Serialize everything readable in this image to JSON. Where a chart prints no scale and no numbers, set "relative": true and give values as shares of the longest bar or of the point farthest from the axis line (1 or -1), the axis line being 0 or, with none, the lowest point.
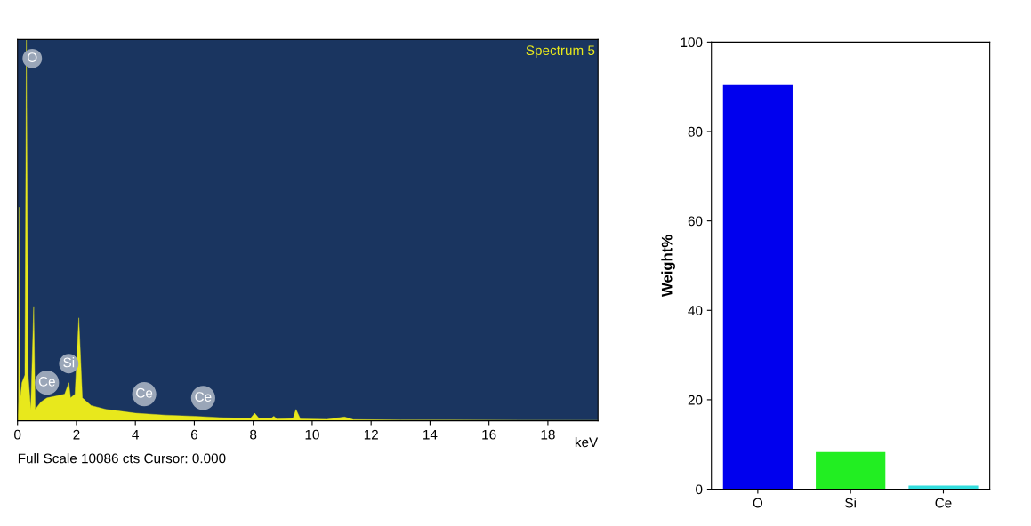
{
  "chart_data": [
    {
      "type": "area",
      "relative": true,
      "xlabel": "keV",
      "color": "#e8e81c",
      "tick_labels": "x",
      "grid": false,
      "x": [
        0,
        0.03,
        0.05,
        0.08,
        0.15,
        0.25,
        0.3,
        0.36,
        0.45,
        0.55,
        0.6,
        0.8,
        1.0,
        1.3,
        1.6,
        1.74,
        1.8,
        1.95,
        2.08,
        2.2,
        2.5,
        3.0,
        3.5,
        4.0,
        5.0,
        6.0,
        7.0,
        7.9,
        8.05,
        8.2,
        8.6,
        8.7,
        8.8,
        9.35,
        9.45,
        9.6,
        10.5,
        11.1,
        11.4,
        13,
        19.7
      ],
      "values": [
        0,
        0.05,
        0.56,
        0.05,
        0.1,
        0.12,
        1.0,
        0.12,
        0.03,
        0.3,
        0.03,
        0.05,
        0.06,
        0.065,
        0.07,
        0.1,
        0.06,
        0.07,
        0.27,
        0.06,
        0.04,
        0.03,
        0.025,
        0.02,
        0.015,
        0.012,
        0.008,
        0.006,
        0.02,
        0.006,
        0.006,
        0.012,
        0.005,
        0.006,
        0.03,
        0.005,
        0.004,
        0.01,
        0.003,
        0.002,
        0.001
      ],
      "xlim": [
        0,
        19.7
      ],
      "xticks": [
        0,
        2,
        4,
        6,
        8,
        10,
        12,
        14,
        16,
        18
      ],
      "annotations": [
        "Spectrum 5",
        "Full Scale 10086 cts Cursor: 0.000",
        {
          "text": "O",
          "x": 0.5,
          "y": 0.95
        },
        {
          "text": "Ce",
          "x": 1.0,
          "y": 0.1
        },
        {
          "text": "Si",
          "x": 1.74,
          "y": 0.15
        },
        {
          "text": "Ce",
          "x": 4.3,
          "y": 0.07
        },
        {
          "text": "Ce",
          "x": 6.3,
          "y": 0.06
        }
      ]
    },
    {
      "type": "bar",
      "ylabel": "Weight%",
      "categories": [
        "O",
        "Si",
        "Ce"
      ],
      "values": [
        90.4,
        8.3,
        0.8
      ],
      "colors": [
        "#0000ee",
        "#22ee22",
        "#33dddd"
      ],
      "ylim": [
        0,
        100
      ],
      "yticks": [
        0,
        20,
        40,
        60,
        80,
        100
      ],
      "grid": false
    }
  ]
}
